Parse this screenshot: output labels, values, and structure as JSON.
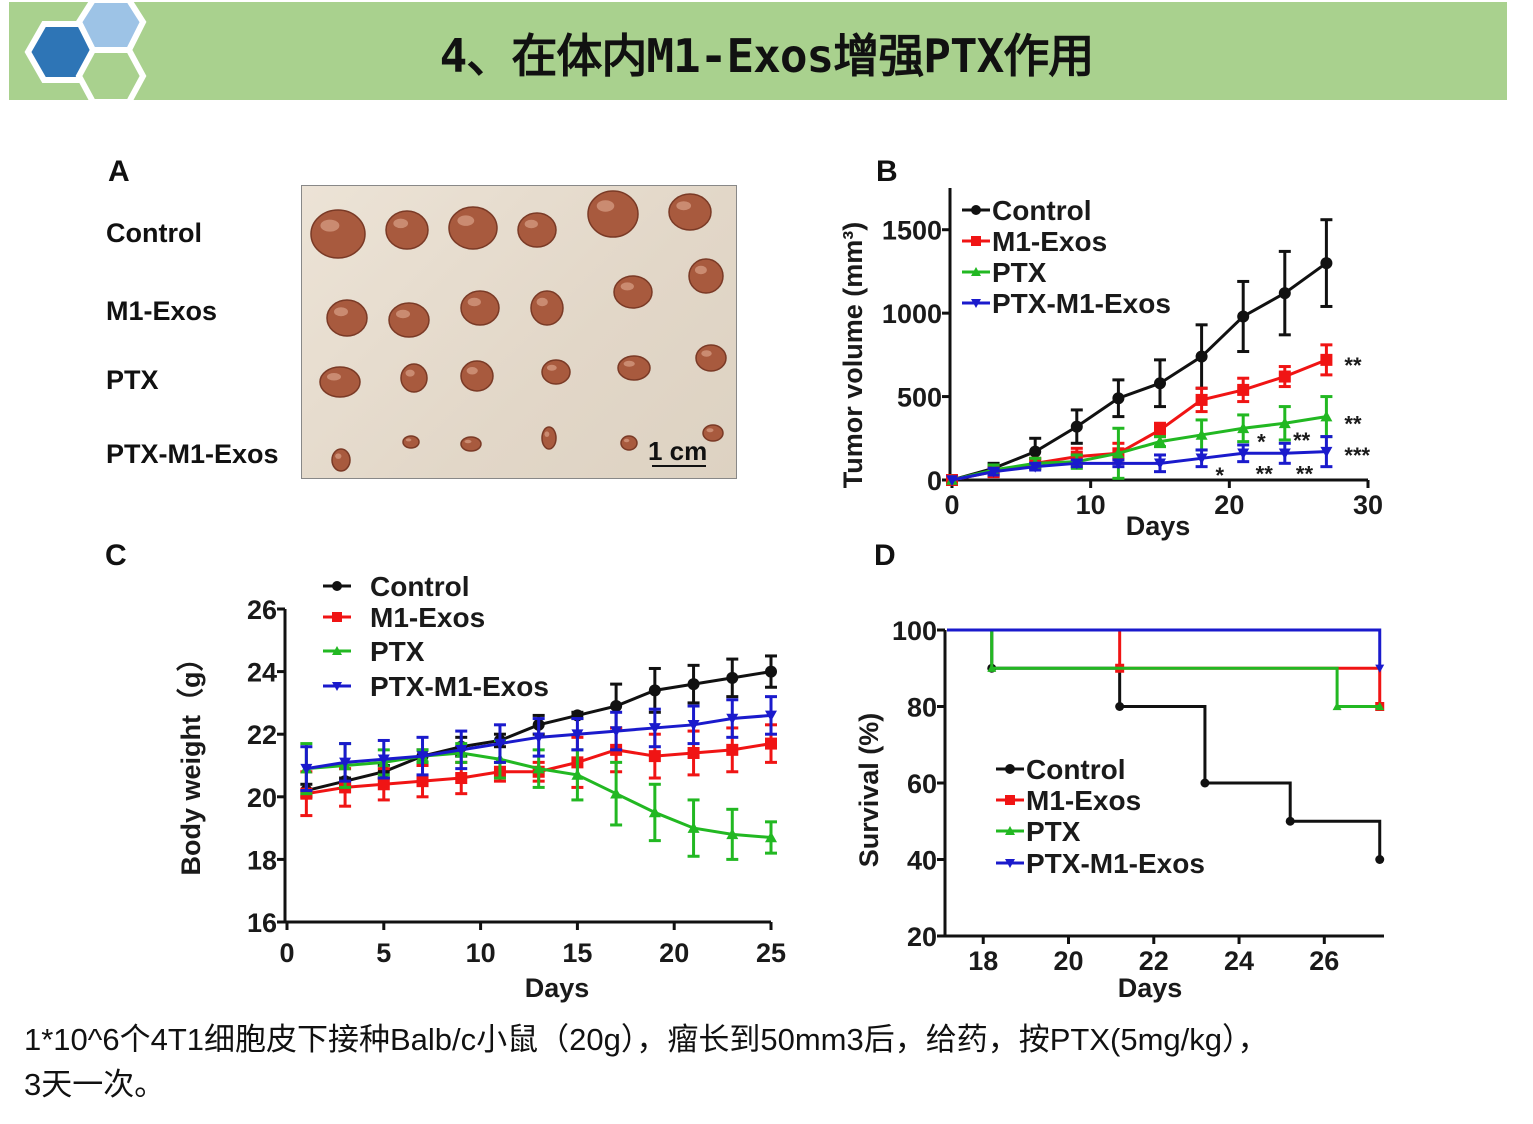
{
  "header": {
    "title": "4、在体内M1-Exos增强PTX作用",
    "logo": "hexagon-cluster-logo",
    "bar_color": "#a9d18e"
  },
  "panel_a": {
    "letter": "A",
    "rows": [
      "Control",
      "M1-Exos",
      "PTX",
      "PTX-M1-Exos"
    ],
    "scale_label": "1 cm"
  },
  "panel_b": {
    "letter": "B"
  },
  "panel_c": {
    "letter": "C"
  },
  "panel_d": {
    "letter": "D"
  },
  "footer": {
    "line1": "1*10^6个4T1细胞皮下接种Balb/c小鼠（20g），瘤长到50mm3后，给药，按PTX(5mg/kg），",
    "line2": "3天一次。"
  },
  "colors": {
    "Control": "#111111",
    "M1-Exos": "#f01414",
    "PTX": "#22b822",
    "PTX-M1-Exos": "#1a1acc"
  },
  "chart_data": [
    {
      "type": "line",
      "panel": "B",
      "xlabel": "Days",
      "ylabel": "Tumor volume (mm³)",
      "xlim": [
        0,
        30
      ],
      "ylim": [
        0,
        1750
      ],
      "xticks": [
        0,
        10,
        20,
        30
      ],
      "yticks": [
        0,
        500,
        1000,
        1500
      ],
      "legend": "top-left",
      "x": [
        0,
        3,
        6,
        9,
        12,
        15,
        18,
        21,
        24,
        27
      ],
      "series": [
        {
          "name": "Control",
          "marker": "circle",
          "values": [
            0,
            70,
            170,
            320,
            490,
            580,
            740,
            980,
            1120,
            1300
          ],
          "error": [
            0,
            30,
            80,
            100,
            110,
            140,
            190,
            210,
            250,
            260
          ]
        },
        {
          "name": "M1-Exos",
          "marker": "square",
          "values": [
            0,
            50,
            100,
            140,
            160,
            300,
            480,
            540,
            620,
            720
          ],
          "error": [
            0,
            30,
            30,
            50,
            60,
            40,
            70,
            70,
            60,
            90
          ]
        },
        {
          "name": "PTX",
          "marker": "triangle-up",
          "values": [
            0,
            60,
            100,
            110,
            160,
            230,
            270,
            310,
            340,
            380
          ],
          "error": [
            0,
            30,
            30,
            40,
            150,
            30,
            90,
            80,
            100,
            120
          ]
        },
        {
          "name": "PTX-M1-Exos",
          "marker": "triangle-down",
          "values": [
            0,
            50,
            80,
            100,
            100,
            100,
            130,
            160,
            160,
            170
          ],
          "error": [
            0,
            20,
            20,
            20,
            20,
            50,
            50,
            50,
            60,
            90
          ]
        }
      ],
      "annotations": [
        {
          "text": "**",
          "x": 28.3,
          "y": 690
        },
        {
          "text": "**",
          "x": 28.3,
          "y": 340
        },
        {
          "text": "***",
          "x": 28.3,
          "y": 150
        },
        {
          "text": "*",
          "x": 22.0,
          "y": 230
        },
        {
          "text": "**",
          "x": 24.6,
          "y": 240
        },
        {
          "text": "*",
          "x": 19.0,
          "y": 30
        },
        {
          "text": "**",
          "x": 21.9,
          "y": 40
        },
        {
          "text": "**",
          "x": 24.8,
          "y": 40
        }
      ]
    },
    {
      "type": "line",
      "panel": "C",
      "xlabel": "Days",
      "ylabel": "Body weight（g）",
      "xlim": [
        0,
        25
      ],
      "ylim": [
        16,
        26
      ],
      "xticks": [
        0,
        5,
        10,
        15,
        20,
        25
      ],
      "yticks": [
        16,
        18,
        20,
        22,
        24,
        26
      ],
      "legend": "top-left",
      "x": [
        1,
        3,
        5,
        7,
        9,
        11,
        13,
        15,
        17,
        19,
        21,
        23,
        25
      ],
      "series": [
        {
          "name": "Control",
          "marker": "circle",
          "values": [
            20.2,
            20.5,
            20.8,
            21.3,
            21.6,
            21.8,
            22.3,
            22.6,
            22.9,
            23.4,
            23.6,
            23.8,
            24.0
          ],
          "error": [
            0.2,
            0.1,
            0.2,
            0.2,
            0.3,
            0.2,
            0.3,
            0.1,
            0.7,
            0.7,
            0.6,
            0.6,
            0.5
          ]
        },
        {
          "name": "M1-Exos",
          "marker": "square",
          "values": [
            20.1,
            20.3,
            20.4,
            20.5,
            20.6,
            20.8,
            20.8,
            21.1,
            21.5,
            21.3,
            21.4,
            21.5,
            21.7
          ],
          "error": [
            0.7,
            0.6,
            0.5,
            0.5,
            0.5,
            0.3,
            0.3,
            0.8,
            0.7,
            0.7,
            0.7,
            0.7,
            0.6
          ]
        },
        {
          "name": "PTX",
          "marker": "triangle-up",
          "values": [
            20.9,
            21.0,
            21.1,
            21.3,
            21.4,
            21.2,
            20.9,
            20.7,
            20.1,
            19.5,
            19.0,
            18.8,
            18.7
          ],
          "error": [
            0.8,
            0.7,
            0.4,
            0.2,
            0.3,
            0.6,
            0.6,
            0.8,
            1.0,
            0.9,
            0.9,
            0.8,
            0.5
          ]
        },
        {
          "name": "PTX-M1-Exos",
          "marker": "triangle-down",
          "values": [
            20.9,
            21.1,
            21.2,
            21.3,
            21.5,
            21.7,
            21.9,
            22.0,
            22.1,
            22.2,
            22.3,
            22.5,
            22.6
          ],
          "error": [
            0.7,
            0.6,
            0.6,
            0.6,
            0.6,
            0.6,
            0.6,
            0.5,
            0.6,
            0.6,
            0.6,
            0.6,
            0.6
          ]
        }
      ]
    },
    {
      "type": "line",
      "panel": "D",
      "step": true,
      "xlabel": "Days",
      "ylabel": "Survival (%)",
      "xlim": [
        17.15,
        27.4
      ],
      "ylim": [
        20,
        100
      ],
      "xticks": [
        18,
        20,
        22,
        24,
        26
      ],
      "yticks": [
        20,
        40,
        60,
        80,
        100
      ],
      "legend": "center-left",
      "series": [
        {
          "name": "Control",
          "marker": "circle",
          "x": [
            17.15,
            18.2,
            21.2,
            23.2,
            25.2,
            27.3
          ],
          "values": [
            100,
            90,
            80,
            60,
            50,
            40
          ]
        },
        {
          "name": "M1-Exos",
          "marker": "square",
          "x": [
            17.15,
            21.2,
            27.3
          ],
          "values": [
            100,
            90,
            80
          ]
        },
        {
          "name": "PTX",
          "marker": "triangle-up",
          "x": [
            17.15,
            18.2,
            26.3,
            27.3
          ],
          "values": [
            100,
            90,
            80,
            80
          ]
        },
        {
          "name": "PTX-M1-Exos",
          "marker": "triangle-down",
          "x": [
            17.15,
            27.3
          ],
          "values": [
            100,
            90
          ]
        }
      ]
    }
  ]
}
